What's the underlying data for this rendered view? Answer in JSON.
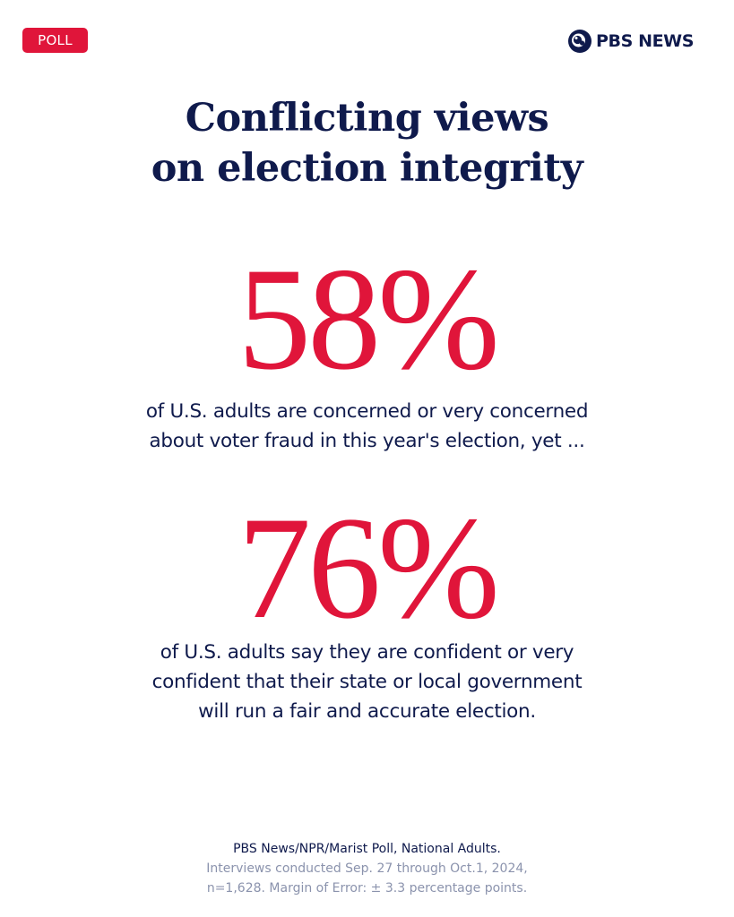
{
  "badge": "POLL",
  "brand": {
    "name": "PBS NEWS",
    "color": "#0f1a4c"
  },
  "headline": {
    "line1": "Conflicting views",
    "line2": "on election integrity"
  },
  "stats": [
    {
      "value": "58%",
      "text_line1": "of U.S. adults are concerned or very concerned",
      "text_line2": "about voter fraud in this year's election, yet ..."
    },
    {
      "value": "76%",
      "text_line1": "of U.S. adults say they are confident or very",
      "text_line2": "confident that their state or local government",
      "text_line3": "will run a fair and accurate election."
    }
  ],
  "footer": {
    "source": "PBS News/NPR/Marist Poll, National Adults.",
    "dates": "Interviews conducted Sep. 27 through Oct.1, 2024,",
    "sample": "n=1,628. Margin of Error: ± 3.3 percentage points."
  },
  "colors": {
    "accent": "#e0153a",
    "navy": "#0f1a4c",
    "muted": "#8b93ad",
    "background": "#ffffff"
  },
  "icons": [
    "pbs-head-logo-icon"
  ]
}
